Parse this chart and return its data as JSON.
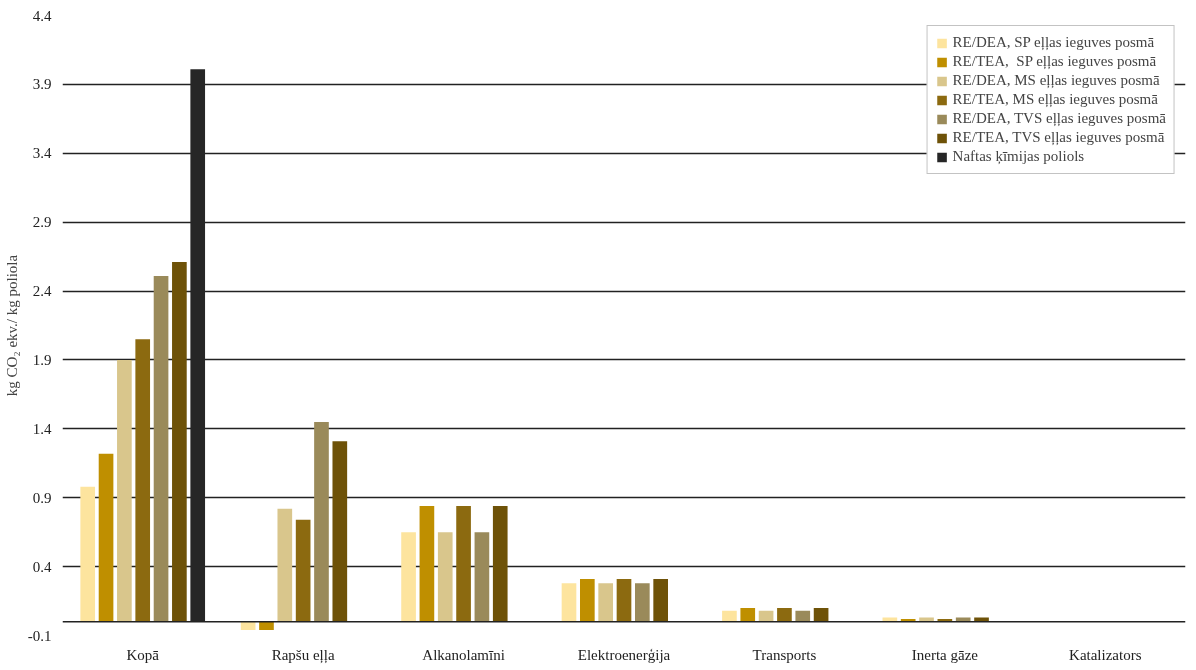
{
  "chart_data": {
    "type": "bar",
    "ylabel": "kg CO₂ ekv./ kg poliola",
    "categories": [
      "Kopā",
      "Rapšu eļļa",
      "Alkanolamīni",
      "Elektroenerģija",
      "Transports",
      "Inerta gāze",
      "Katalizators"
    ],
    "series": [
      {
        "name": "RE/DEA, SP eļļas ieguves posmā",
        "color": "#fde49e",
        "values": [
          0.98,
          -0.06,
          0.65,
          0.28,
          0.08,
          0.03,
          null
        ]
      },
      {
        "name": "RE/TEA,  SP eļļas ieguves posmā",
        "color": "#bf8f00",
        "values": [
          1.22,
          -0.06,
          0.84,
          0.31,
          0.1,
          0.02,
          null
        ]
      },
      {
        "name": "RE/DEA, MS eļļas ieguves posmā",
        "color": "#d9c68c",
        "values": [
          1.9,
          0.82,
          0.65,
          0.28,
          0.08,
          0.03,
          null
        ]
      },
      {
        "name": "RE/TEA, MS eļļas ieguves posmā",
        "color": "#8c6a10",
        "values": [
          2.05,
          0.74,
          0.84,
          0.31,
          0.1,
          0.02,
          null
        ]
      },
      {
        "name": "RE/DEA, TVS eļļas ieguves posmā",
        "color": "#9a8a5a",
        "values": [
          2.51,
          1.45,
          0.65,
          0.28,
          0.08,
          0.03,
          null
        ]
      },
      {
        "name": "RE/TEA, TVS eļļas ieguves posmā",
        "color": "#6e5208",
        "values": [
          2.61,
          1.31,
          0.84,
          0.31,
          0.1,
          0.03,
          null
        ]
      },
      {
        "name": "Naftas ķīmijas poliols",
        "color": "#262626",
        "values": [
          4.01,
          null,
          null,
          null,
          null,
          null,
          null
        ]
      }
    ],
    "ylim": [
      -0.1,
      4.4
    ],
    "yticks": [
      -0.1,
      0.4,
      0.9,
      1.4,
      1.9,
      2.4,
      2.9,
      3.4,
      3.9,
      4.4
    ],
    "grid": "y",
    "legend": "top right"
  }
}
